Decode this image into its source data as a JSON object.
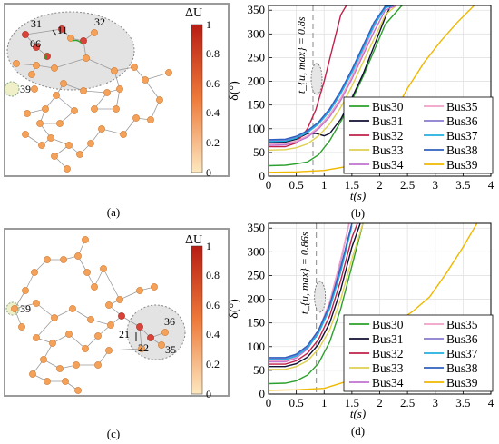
{
  "colorbars": [
    {
      "label": "ΔU",
      "ticks": [
        "1",
        "0.8",
        "0.6",
        "0.4",
        "0.2",
        "0"
      ]
    },
    {
      "label": "ΔU",
      "ticks": [
        "1",
        "0.8",
        "0.6",
        "0.4",
        "0.2",
        "0"
      ]
    }
  ],
  "colors": {
    "cbar_top": "#b81d13",
    "cbar_mid": "#ee7a3a",
    "cbar_bottom": "#fde8c0",
    "node_fill": "#f4a259",
    "node_stroke": "#d1772e",
    "hot_node": "#d9433a",
    "panel_frame": "#9a9a9a",
    "highlight_area": "#e3e3e3",
    "edge": "#9a9a9a"
  },
  "networks": [
    {
      "panel_label": "(a)",
      "bus_labels": [
        "31",
        "11",
        "32",
        "06",
        "39"
      ]
    },
    {
      "panel_label": "(c)",
      "bus_labels": [
        "39",
        "21",
        "22",
        "36",
        "35"
      ]
    }
  ],
  "chart_data": [
    {
      "type": "line",
      "panel_label": "(b)",
      "xlabel": "t(s)",
      "ylabel": "δ(°)",
      "xlim": [
        0,
        4
      ],
      "ylim": [
        0,
        360
      ],
      "xticks": [
        0,
        0.5,
        1,
        1.5,
        2,
        2.5,
        3,
        3.5,
        4
      ],
      "yticks": [
        0,
        50,
        100,
        150,
        200,
        250,
        300,
        350
      ],
      "grid": true,
      "legend_position": "bottom-right",
      "annotation": {
        "x": 0.8,
        "text": "t_{u, max} = 0.8s"
      },
      "series": [
        {
          "name": "Bus30",
          "color": "#2ca02c",
          "x": [
            0,
            0.3,
            0.5,
            0.7,
            0.9,
            1.1,
            1.3,
            1.5,
            1.7,
            1.9,
            2.1,
            2.4
          ],
          "y": [
            22,
            23,
            26,
            30,
            45,
            75,
            115,
            160,
            210,
            265,
            320,
            360
          ]
        },
        {
          "name": "Bus31",
          "color": "#111133",
          "x": [
            0,
            0.3,
            0.5,
            0.7,
            0.85,
            1.0,
            1.1,
            1.3,
            1.5,
            1.7,
            1.9,
            2.1,
            2.2
          ],
          "y": [
            72,
            72,
            78,
            90,
            90,
            85,
            90,
            120,
            165,
            215,
            275,
            335,
            360
          ]
        },
        {
          "name": "Bus32",
          "color": "#c0204a",
          "x": [
            0,
            0.3,
            0.5,
            0.7,
            0.85,
            1.0,
            1.15,
            1.3,
            1.4
          ],
          "y": [
            62,
            62,
            70,
            100,
            140,
            200,
            270,
            340,
            360
          ]
        },
        {
          "name": "Bus33",
          "color": "#e0d050",
          "x": [
            0,
            0.3,
            0.5,
            0.7,
            0.9,
            1.1,
            1.3,
            1.5,
            1.7,
            1.9,
            2.1,
            2.3
          ],
          "y": [
            55,
            56,
            60,
            68,
            85,
            110,
            145,
            190,
            240,
            290,
            340,
            360
          ]
        },
        {
          "name": "Bus34",
          "color": "#c070d0",
          "x": [
            0,
            0.3,
            0.5,
            0.7,
            0.9,
            1.1,
            1.3,
            1.5,
            1.7,
            1.9,
            2.1,
            2.3
          ],
          "y": [
            65,
            66,
            72,
            82,
            100,
            125,
            160,
            205,
            255,
            305,
            350,
            360
          ]
        },
        {
          "name": "Bus35",
          "color": "#f0a0c8",
          "x": [
            0,
            0.3,
            0.5,
            0.7,
            0.9,
            1.1,
            1.3,
            1.5,
            1.7,
            1.9,
            2.1,
            2.3
          ],
          "y": [
            68,
            69,
            74,
            85,
            103,
            130,
            165,
            210,
            262,
            315,
            360,
            360
          ]
        },
        {
          "name": "Bus36",
          "color": "#8a7ad0",
          "x": [
            0,
            0.3,
            0.5,
            0.7,
            0.9,
            1.1,
            1.3,
            1.5,
            1.7,
            1.9,
            2.1,
            2.25
          ],
          "y": [
            75,
            76,
            82,
            94,
            112,
            140,
            178,
            222,
            272,
            320,
            355,
            360
          ]
        },
        {
          "name": "Bus37",
          "color": "#20b0e0",
          "x": [
            0,
            0.3,
            0.5,
            0.7,
            0.9,
            1.1,
            1.3,
            1.5,
            1.7,
            1.9,
            2.1,
            2.25
          ],
          "y": [
            73,
            74,
            80,
            92,
            110,
            137,
            174,
            218,
            268,
            318,
            355,
            360
          ]
        },
        {
          "name": "Bus38",
          "color": "#3060c0",
          "x": [
            0,
            0.3,
            0.5,
            0.7,
            0.9,
            1.1,
            1.3,
            1.5,
            1.7,
            1.9,
            2.1,
            2.25
          ],
          "y": [
            77,
            78,
            84,
            96,
            114,
            142,
            180,
            225,
            275,
            325,
            358,
            360
          ]
        },
        {
          "name": "Bus39",
          "color": "#f0b800",
          "x": [
            0,
            0.5,
            1.0,
            1.5,
            1.8,
            2.0,
            2.2,
            2.5,
            2.8,
            3.1,
            3.4,
            3.7
          ],
          "y": [
            8,
            9,
            12,
            22,
            45,
            75,
            120,
            185,
            240,
            285,
            325,
            360
          ]
        }
      ]
    },
    {
      "type": "line",
      "panel_label": "(d)",
      "xlabel": "t(s)",
      "ylabel": "δ(°)",
      "xlim": [
        0,
        4
      ],
      "ylim": [
        0,
        360
      ],
      "xticks": [
        0,
        0.5,
        1,
        1.5,
        2,
        2.5,
        3,
        3.5,
        4
      ],
      "yticks": [
        0,
        50,
        100,
        150,
        200,
        250,
        300,
        350
      ],
      "grid": true,
      "legend_position": "bottom-right",
      "annotation": {
        "x": 0.86,
        "text": "t_{u, max} = 0.86s"
      },
      "series": [
        {
          "name": "Bus30",
          "color": "#2ca02c",
          "x": [
            0,
            0.3,
            0.5,
            0.7,
            0.9,
            1.1,
            1.3,
            1.5,
            1.7
          ],
          "y": [
            22,
            23,
            28,
            40,
            65,
            110,
            180,
            270,
            360
          ]
        },
        {
          "name": "Bus31",
          "color": "#111133",
          "x": [
            0,
            0.3,
            0.5,
            0.7,
            0.9,
            1.1,
            1.3,
            1.5,
            1.65
          ],
          "y": [
            58,
            58,
            64,
            78,
            105,
            150,
            220,
            310,
            360
          ]
        },
        {
          "name": "Bus32",
          "color": "#c0204a",
          "x": [
            0,
            0.3,
            0.5,
            0.7,
            0.9,
            1.1,
            1.3,
            1.5,
            1.6
          ],
          "y": [
            63,
            63,
            70,
            86,
            115,
            165,
            240,
            330,
            360
          ]
        },
        {
          "name": "Bus33",
          "color": "#e0d050",
          "x": [
            0,
            0.3,
            0.5,
            0.7,
            0.9,
            1.1,
            1.3,
            1.5,
            1.7
          ],
          "y": [
            52,
            52,
            58,
            70,
            95,
            135,
            200,
            285,
            360
          ]
        },
        {
          "name": "Bus34",
          "color": "#c070d0",
          "x": [
            0,
            0.3,
            0.5,
            0.7,
            0.9,
            1.1,
            1.3,
            1.45
          ],
          "y": [
            68,
            68,
            76,
            95,
            130,
            190,
            280,
            360
          ]
        },
        {
          "name": "Bus35",
          "color": "#f0a0c8",
          "x": [
            0,
            0.3,
            0.5,
            0.7,
            0.9,
            1.1,
            1.3,
            1.45
          ],
          "y": [
            70,
            70,
            78,
            98,
            134,
            195,
            285,
            360
          ]
        },
        {
          "name": "Bus36",
          "color": "#8a7ad0",
          "x": [
            0,
            0.3,
            0.5,
            0.7,
            0.9,
            1.1,
            1.3,
            1.5
          ],
          "y": [
            75,
            75,
            82,
            100,
            132,
            185,
            265,
            360
          ]
        },
        {
          "name": "Bus37",
          "color": "#20b0e0",
          "x": [
            0,
            0.3,
            0.5,
            0.7,
            0.9,
            1.1,
            1.3,
            1.5
          ],
          "y": [
            73,
            73,
            80,
            97,
            128,
            180,
            258,
            355
          ]
        },
        {
          "name": "Bus38",
          "color": "#3060c0",
          "x": [
            0,
            0.3,
            0.5,
            0.7,
            0.9,
            1.1,
            1.3,
            1.5
          ],
          "y": [
            77,
            77,
            84,
            102,
            135,
            188,
            268,
            360
          ]
        },
        {
          "name": "Bus39",
          "color": "#f0b800",
          "x": [
            0,
            0.5,
            1.0,
            1.5,
            1.8,
            2.0,
            2.3,
            2.6,
            2.9,
            3.2,
            3.5,
            3.75
          ],
          "y": [
            8,
            9,
            12,
            30,
            70,
            110,
            150,
            175,
            205,
            255,
            310,
            360
          ]
        }
      ]
    }
  ]
}
